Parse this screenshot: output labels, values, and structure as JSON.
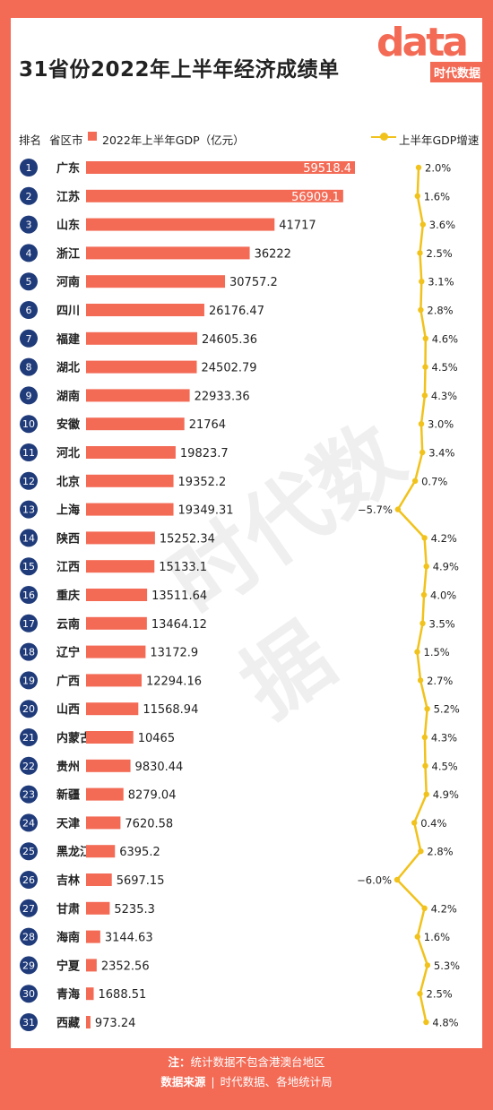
{
  "title": "31省份2022年上半年经济成绩单",
  "logo": {
    "big": "data",
    "cn": "时代数据"
  },
  "watermark": "时代数据",
  "header": {
    "rank": "排名",
    "province": "省区市",
    "gdp": "2022年上半年GDP（亿元）",
    "growth": "上半年GDP增速"
  },
  "colors": {
    "bar": "#f36a55",
    "line": "#f1c21b",
    "rank_circle": "#1f3b7a"
  },
  "chart_data": {
    "type": "bar",
    "title": "31省份2022年上半年经济成绩单",
    "categories": [
      "广东",
      "江苏",
      "山东",
      "浙江",
      "河南",
      "四川",
      "福建",
      "湖北",
      "湖南",
      "安徽",
      "河北",
      "北京",
      "上海",
      "陕西",
      "江西",
      "重庆",
      "云南",
      "辽宁",
      "广西",
      "山西",
      "内蒙古",
      "贵州",
      "新疆",
      "天津",
      "黑龙江",
      "吉林",
      "甘肃",
      "海南",
      "宁夏",
      "青海",
      "西藏"
    ],
    "series": [
      {
        "name": "2022年上半年GDP（亿元）",
        "values": [
          59518.4,
          56909.1,
          41717,
          36222,
          30757.2,
          26176.47,
          24605.36,
          24502.79,
          22933.36,
          21764,
          19823.7,
          19352.2,
          19349.31,
          15252.34,
          15133.1,
          13511.64,
          13464.12,
          13172.9,
          12294.16,
          11568.94,
          10465,
          9830.44,
          8279.04,
          7620.58,
          6395.2,
          5697.15,
          5235.3,
          3144.63,
          2352.56,
          1688.51,
          973.24
        ]
      },
      {
        "name": "上半年GDP增速",
        "values": [
          2.0,
          1.6,
          3.6,
          2.5,
          3.1,
          2.8,
          4.6,
          4.5,
          4.3,
          3.0,
          3.4,
          0.7,
          -5.7,
          4.2,
          4.9,
          4.0,
          3.5,
          1.5,
          2.7,
          5.2,
          4.3,
          4.5,
          4.9,
          0.4,
          2.8,
          -6.0,
          4.2,
          1.6,
          5.3,
          2.5,
          4.8
        ]
      }
    ],
    "labels_gdp": [
      "59518.4",
      "56909.1",
      "41717",
      "36222",
      "30757.2",
      "26176.47",
      "24605.36",
      "24502.79",
      "22933.36",
      "21764",
      "19823.7",
      "19352.2",
      "19349.31",
      "15252.34",
      "15133.1",
      "13511.64",
      "13464.12",
      "13172.9",
      "12294.16",
      "11568.94",
      "10465",
      "9830.44",
      "8279.04",
      "7620.58",
      "6395.2",
      "5697.15",
      "5235.3",
      "3144.63",
      "2352.56",
      "1688.51",
      "973.24"
    ],
    "labels_growth": [
      "2.0%",
      "1.6%",
      "3.6%",
      "2.5%",
      "3.1%",
      "2.8%",
      "4.6%",
      "4.5%",
      "4.3%",
      "3.0%",
      "3.4%",
      "0.7%",
      "−5.7%",
      "4.2%",
      "4.9%",
      "4.0%",
      "3.5%",
      "1.5%",
      "2.7%",
      "5.2%",
      "4.3%",
      "4.5%",
      "4.9%",
      "0.4%",
      "2.8%",
      "−6.0%",
      "4.2%",
      "1.6%",
      "5.3%",
      "2.5%",
      "4.8%"
    ]
  },
  "footer": {
    "note_label": "注：",
    "note": "统计数据不包含港澳台地区",
    "source_label": "数据来源",
    "source": "时代数据、各地统计局"
  }
}
